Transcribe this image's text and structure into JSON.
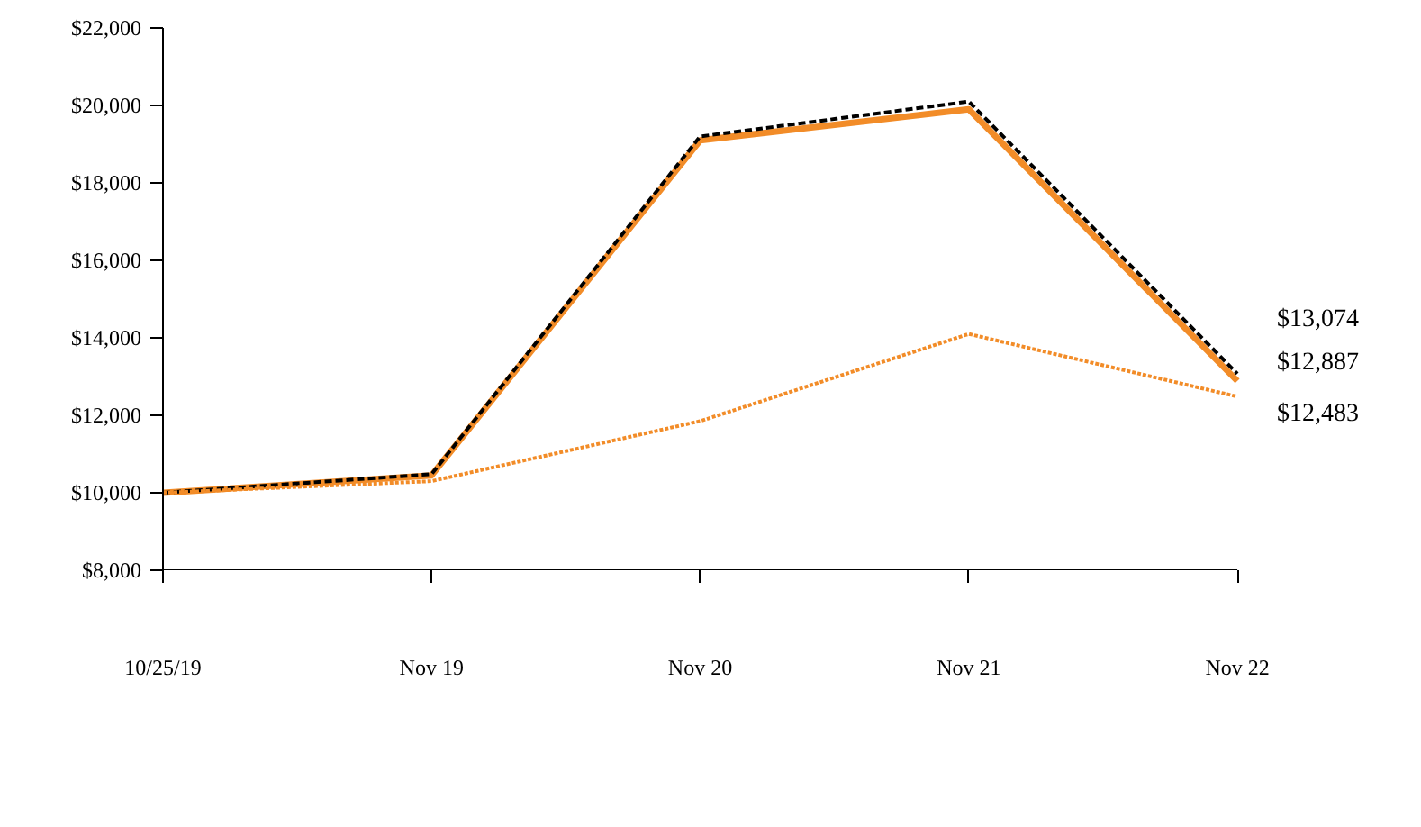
{
  "chart_data": {
    "type": "line",
    "categories": [
      "10/25/19",
      "Nov 19",
      "Nov 20",
      "Nov 21",
      "Nov 22"
    ],
    "ylim": [
      8000,
      22000
    ],
    "yticks": [
      {
        "value": 8000,
        "label": "$8,000"
      },
      {
        "value": 10000,
        "label": "$10,000"
      },
      {
        "value": 12000,
        "label": "$12,000"
      },
      {
        "value": 14000,
        "label": "$14,000"
      },
      {
        "value": 16000,
        "label": "$16,000"
      },
      {
        "value": 18000,
        "label": "$18,000"
      },
      {
        "value": 20000,
        "label": "$20,000"
      },
      {
        "value": 22000,
        "label": "$22,000"
      }
    ],
    "grid": false,
    "marker": "none",
    "series": [
      {
        "color": "#f28c28",
        "line_style": "solid",
        "values": [
          10000,
          10450,
          19100,
          19900,
          12887
        ],
        "value_labels": [
          null,
          null,
          null,
          null,
          "$12,887"
        ]
      },
      {
        "color": "#000000",
        "line_style": "dashed",
        "values": [
          10000,
          10480,
          19200,
          20100,
          13074
        ],
        "value_labels": [
          null,
          null,
          null,
          null,
          "$13,074"
        ]
      },
      {
        "color": "#f28c28",
        "line_style": "dotted",
        "values": [
          10000,
          10300,
          11850,
          14100,
          12483
        ],
        "value_labels": [
          null,
          null,
          null,
          null,
          "$12,483"
        ]
      }
    ]
  }
}
